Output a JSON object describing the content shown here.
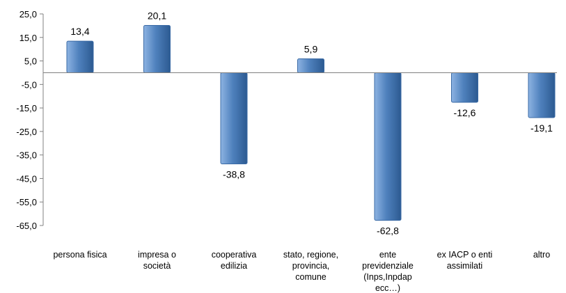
{
  "chart_data": {
    "type": "bar",
    "title": "",
    "xlabel": "",
    "ylabel": "",
    "categories": [
      [
        "persona fisica"
      ],
      [
        "impresa o",
        "società"
      ],
      [
        "cooperativa",
        "edilizia"
      ],
      [
        "stato, regione,",
        "provincia,",
        "comune"
      ],
      [
        "ente",
        "previdenziale",
        "(Inps,Inpdap",
        "ecc…)"
      ],
      [
        "ex IACP o enti",
        "assimilati"
      ],
      [
        "altro"
      ]
    ],
    "values": [
      13.4,
      20.1,
      -38.8,
      5.9,
      -62.8,
      -12.6,
      -19.1
    ],
    "value_labels": [
      "13,4",
      "20,1",
      "-38,8",
      "5,9",
      "-62,8",
      "-12,6",
      "-19,1"
    ],
    "ylim": [
      -65,
      25
    ],
    "yticks": [
      25,
      15,
      5,
      -5,
      -15,
      -25,
      -35,
      -45,
      -55,
      -65
    ],
    "ytick_labels": [
      "25,0",
      "15,0",
      "5,0",
      "-5,0",
      "-15,0",
      "-25,0",
      "-35,0",
      "-45,0",
      "-55,0",
      "-65,0"
    ],
    "grid": false,
    "legend": "none",
    "colors": {
      "bar_light": "#8db3e2",
      "bar_mid": "#4f81bd",
      "bar_dark": "#2c5a91",
      "bar_edge": "#3a6aa5",
      "axis": "#808080"
    }
  }
}
